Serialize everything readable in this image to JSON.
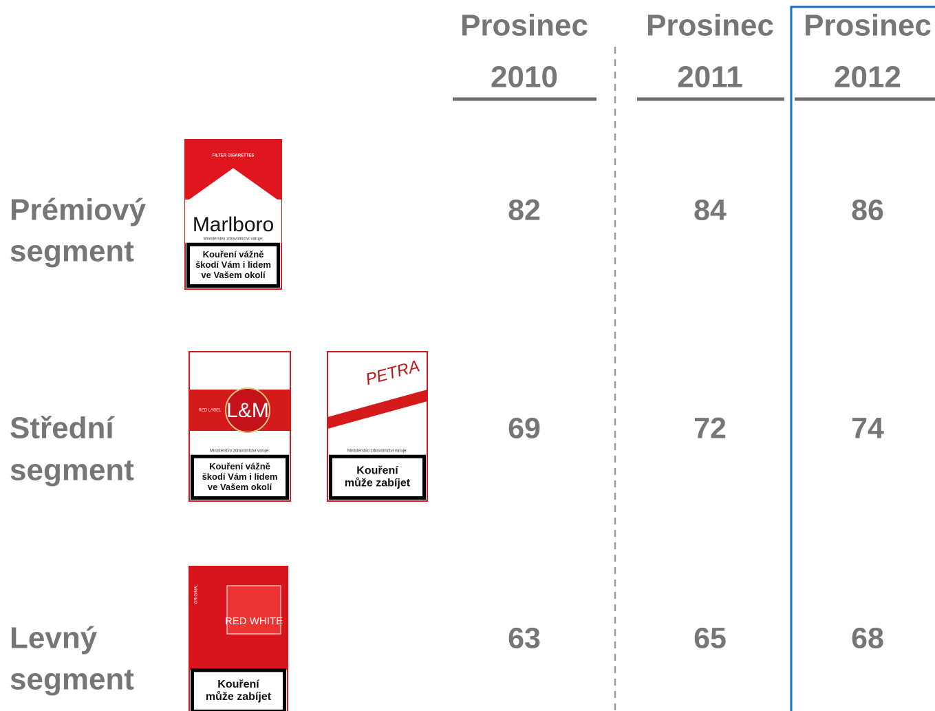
{
  "columns": [
    {
      "month": "Prosinec",
      "year": "2010"
    },
    {
      "month": "Prosinec",
      "year": "2011"
    },
    {
      "month": "Prosinec",
      "year": "2012"
    }
  ],
  "rows": [
    {
      "label": [
        "Prémiový",
        "segment"
      ],
      "packs": [
        {
          "brand": "Marlboro",
          "tagline": "FILTER CIGARETTES",
          "notice": "Ministerstvo zdravotnictví varuje:",
          "warning": [
            "Kouření vážně",
            "škodí Vám i lidem",
            "ve Vašem okolí"
          ]
        }
      ],
      "values": [
        "82",
        "84",
        "86"
      ]
    },
    {
      "label": [
        "Střední",
        "segment"
      ],
      "packs": [
        {
          "brand": "L&M",
          "tagline": "RED LABEL",
          "notice": "Ministerstvo zdravotnictví varuje:",
          "warning": [
            "Kouření vážně",
            "škodí Vám i lidem",
            "ve Vašem okolí"
          ]
        },
        {
          "brand": "PETRA",
          "notice": "Ministerstvo zdravotnictví varuje:",
          "warning": [
            "Kouření",
            "může zabíjet"
          ]
        }
      ],
      "values": [
        "69",
        "72",
        "74"
      ]
    },
    {
      "label": [
        "Levný",
        "segment"
      ],
      "packs": [
        {
          "brand": "RED WHITE",
          "tagline": "ORIGINAL",
          "warning": [
            "Kouření",
            "může zabíjet"
          ]
        }
      ],
      "values": [
        "63",
        "65",
        "68"
      ]
    }
  ]
}
